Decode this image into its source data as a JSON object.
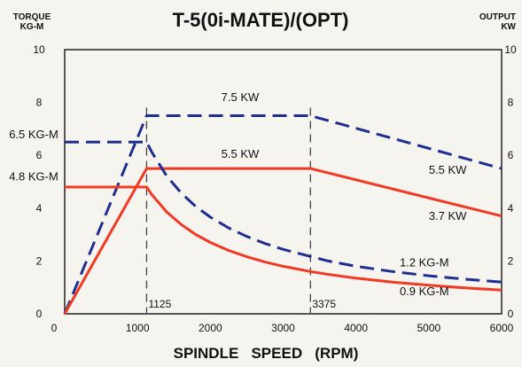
{
  "chart_data": {
    "type": "line",
    "title": "T-5(0i-MATE)/(OPT)",
    "xlabel": "SPINDLE   SPEED   (RPM)",
    "ylabel_left": [
      "TORQUE",
      "KG-M"
    ],
    "ylabel_right": [
      "OUTPUT",
      "KW"
    ],
    "xlim": [
      0,
      6000
    ],
    "ylim": [
      0,
      10
    ],
    "x_ticks": [
      0,
      1000,
      2000,
      3000,
      4000,
      5000,
      6000
    ],
    "y_ticks": [
      0,
      2,
      4,
      6,
      8,
      10
    ],
    "vlines": [
      {
        "x": 1125,
        "label": "1125"
      },
      {
        "x": 3375,
        "label": "3375"
      }
    ],
    "series": [
      {
        "style": "dashed",
        "color": "#1f2f8f",
        "points": [
          [
            0,
            0
          ],
          [
            1125,
            7.5
          ],
          [
            3375,
            7.5
          ],
          [
            6000,
            5.5
          ]
        ]
      },
      {
        "style": "solid",
        "color": "#f03a23",
        "points": [
          [
            0,
            0
          ],
          [
            1125,
            5.5
          ],
          [
            3375,
            5.5
          ],
          [
            6000,
            3.7
          ]
        ]
      },
      {
        "style": "dashed",
        "color": "#1f2f8f",
        "points": [
          [
            0,
            6.5
          ],
          [
            1000,
            6.5
          ],
          [
            1125,
            6.5
          ],
          [
            1200,
            6.1
          ],
          [
            1400,
            5.22
          ],
          [
            1600,
            4.57
          ],
          [
            1800,
            4.06
          ],
          [
            2000,
            3.66
          ],
          [
            2250,
            3.25
          ],
          [
            2500,
            2.93
          ],
          [
            2750,
            2.66
          ],
          [
            3000,
            2.44
          ],
          [
            3375,
            2.17
          ],
          [
            3600,
            2.01
          ],
          [
            4000,
            1.8
          ],
          [
            4500,
            1.6
          ],
          [
            5000,
            1.44
          ],
          [
            5500,
            1.31
          ],
          [
            6000,
            1.2
          ]
        ]
      },
      {
        "style": "solid",
        "color": "#f03a23",
        "points": [
          [
            0,
            4.8
          ],
          [
            1000,
            4.8
          ],
          [
            1125,
            4.8
          ],
          [
            1200,
            4.5
          ],
          [
            1400,
            3.86
          ],
          [
            1600,
            3.38
          ],
          [
            1800,
            3.0
          ],
          [
            2000,
            2.7
          ],
          [
            2250,
            2.4
          ],
          [
            2500,
            2.16
          ],
          [
            2750,
            1.96
          ],
          [
            3000,
            1.8
          ],
          [
            3375,
            1.6
          ],
          [
            3600,
            1.5
          ],
          [
            4000,
            1.35
          ],
          [
            4500,
            1.2
          ],
          [
            5000,
            1.08
          ],
          [
            5500,
            0.98
          ],
          [
            6000,
            0.9
          ]
        ]
      }
    ],
    "annotations": [
      {
        "text": "7.5 KW",
        "x": 2150,
        "y": 8.05
      },
      {
        "text": "6.5 KG-M",
        "x": -950,
        "y": 6.65
      },
      {
        "text": "5.5 KW",
        "x": 2150,
        "y": 5.9
      },
      {
        "text": "4.8 KG-M",
        "x": -950,
        "y": 5.05
      },
      {
        "text": "5.5 KW",
        "x": 5000,
        "y": 5.3
      },
      {
        "text": "3.7 KW",
        "x": 5000,
        "y": 3.55
      },
      {
        "text": "1.2 KG-M",
        "x": 4600,
        "y": 1.8
      },
      {
        "text": "0.9 KG-M",
        "x": 4600,
        "y": 0.7
      }
    ]
  }
}
